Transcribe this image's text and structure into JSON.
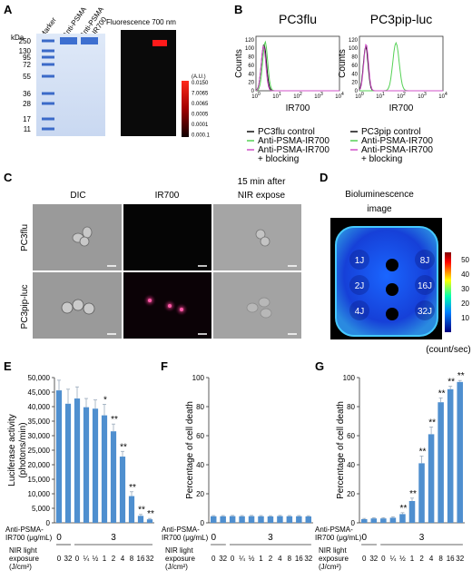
{
  "panels": {
    "A": "A",
    "B": "B",
    "C": "C",
    "D": "D",
    "E": "E",
    "F": "F",
    "G": "G"
  },
  "A": {
    "kda_label": "kDa",
    "lanes": [
      "Marker",
      "Anti-PSMA",
      "Anti-PSMA\n-IR700"
    ],
    "markers": [
      "250",
      "130",
      "95",
      "72",
      "55",
      "36",
      "28",
      "17",
      "11"
    ],
    "fluor_title": "Fluorescence 700 nm",
    "scale_unit": "(A.U.)",
    "scale_ticks": [
      "0.0150",
      "7.0065",
      "0.0065",
      "0.0005",
      "0.0001",
      "0.000.1"
    ]
  },
  "B": {
    "panels": [
      {
        "title": "PC3flu",
        "ylabel": "Counts",
        "xlabel": "IR700",
        "legend": [
          "PC3flu control",
          "Anti-PSMA-IR700",
          "Anti-PSMA-IR700",
          "+ blocking"
        ]
      },
      {
        "title": "PC3pip-luc",
        "ylabel": "Counts",
        "xlabel": "IR700",
        "legend": [
          "PC3pip control",
          "Anti-PSMA-IR700",
          "Anti-PSMA-IR700",
          "+ blocking"
        ]
      }
    ],
    "yticks": [
      "0",
      "20",
      "40",
      "60",
      "80",
      "100",
      "120"
    ],
    "xticks": [
      "10",
      "10",
      "10",
      "10",
      "10"
    ],
    "xexps": [
      "0",
      "1",
      "2",
      "3",
      "4"
    ]
  },
  "C": {
    "cols": [
      "DIC",
      "IR700",
      "15 min after\nNIR expose"
    ],
    "rows": [
      "PC3flu",
      "PC3pip-luc"
    ]
  },
  "D": {
    "title": "Bioluminescence\nimage",
    "wells": [
      "1J",
      "8J",
      "2J",
      "16J",
      "4J",
      "32J"
    ],
    "scale_ticks": [
      "50",
      "40",
      "30",
      "20",
      "10"
    ],
    "unit": "(count/sec)"
  },
  "chart_data": [
    {
      "type": "bar",
      "panel": "E",
      "ylabel": "Luciferase activity\n(photons/min)",
      "ylim": [
        0,
        50000
      ],
      "yticks": [
        "0",
        "5,000",
        "10,000",
        "15,000",
        "20,000",
        "25,000",
        "30,000",
        "35,000",
        "40,000",
        "45,000",
        "50,000"
      ],
      "categories": [
        "0",
        "32",
        "0",
        "¼",
        "½",
        "1",
        "2",
        "4",
        "8",
        "16",
        "32"
      ],
      "values": [
        45600,
        41000,
        42800,
        39800,
        39300,
        37000,
        31500,
        22800,
        9200,
        2400,
        1200
      ],
      "errors": [
        3500,
        5000,
        4000,
        3000,
        3000,
        3800,
        2500,
        1800,
        1500,
        500,
        300
      ],
      "significance": [
        "",
        "",
        "",
        "",
        "",
        "*",
        "**",
        "**",
        "**",
        "**",
        "**"
      ],
      "antibody_label": "Anti-PSMA-\nIR700 (μg/mL)",
      "antibody_values": [
        "0",
        "3"
      ],
      "nir_label": "NIR light\nexposure\n(J/cm²)"
    },
    {
      "type": "bar",
      "panel": "F",
      "ylabel": "Percentage of cell death",
      "ylim": [
        0,
        100
      ],
      "yticks": [
        "0",
        "20",
        "40",
        "60",
        "80",
        "100"
      ],
      "categories": [
        "0",
        "32",
        "0",
        "¼",
        "½",
        "1",
        "2",
        "4",
        "8",
        "16",
        "32"
      ],
      "values": [
        4.5,
        4.5,
        4.6,
        4.5,
        4.6,
        4.5,
        4.4,
        4.6,
        4.5,
        4.5,
        4.4
      ],
      "errors": [
        0.5,
        0.5,
        0.5,
        0.5,
        0.5,
        0.5,
        0.5,
        0.5,
        0.5,
        0.5,
        0.5
      ],
      "significance": [
        "",
        "",
        "",
        "",
        "",
        "",
        "",
        "",
        "",
        "",
        ""
      ],
      "antibody_label": "Anti-PSMA-\nIR700 (μg/mL)",
      "antibody_values": [
        "0",
        "3"
      ],
      "nir_label": "NIR light\nexposure\n(J/cm²)"
    },
    {
      "type": "bar",
      "panel": "G",
      "ylabel": "Percentage of cell death",
      "ylim": [
        0,
        100
      ],
      "yticks": [
        "0",
        "20",
        "40",
        "60",
        "80",
        "100"
      ],
      "categories": [
        "0",
        "32",
        "0",
        "¼",
        "½",
        "1",
        "2",
        "4",
        "8",
        "16",
        "32"
      ],
      "values": [
        2.5,
        3,
        3,
        3.5,
        6,
        15,
        41,
        61,
        83,
        92,
        97
      ],
      "errors": [
        0.5,
        0.5,
        0.5,
        0.7,
        1,
        2,
        5,
        5,
        3,
        2,
        1
      ],
      "significance": [
        "",
        "",
        "",
        "",
        "**",
        "**",
        "**",
        "**",
        "**",
        "**",
        "**"
      ],
      "antibody_label": "Anti-PSMA-\nIR700 (μg/mL)",
      "antibody_values": [
        "0",
        "3"
      ],
      "nir_label": "NIR light\nexposure\n(J/cm²)"
    }
  ]
}
